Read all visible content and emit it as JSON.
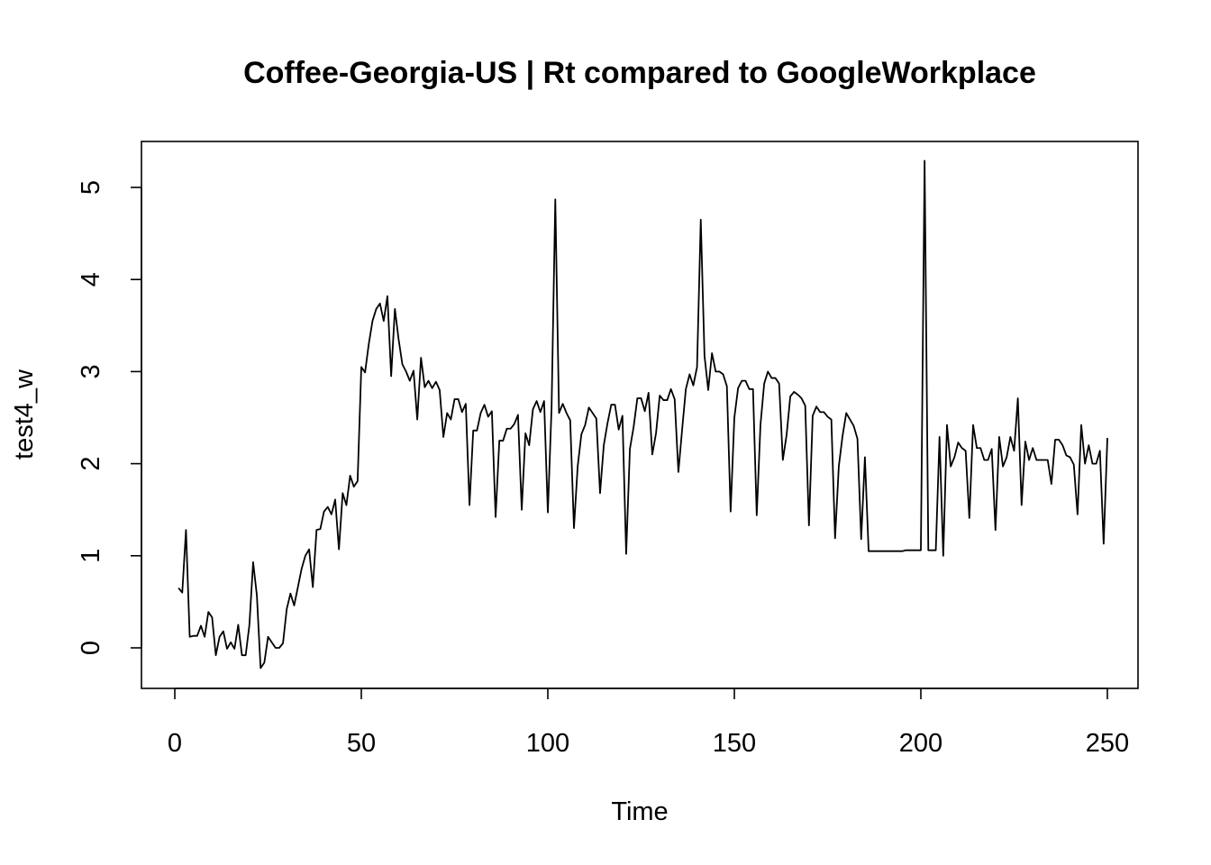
{
  "chart_data": {
    "type": "line",
    "title": "Coffee-Georgia-US | Rt compared to GoogleWorkplace",
    "xlabel": "Time",
    "ylabel": "test4_w",
    "xlim": [
      0,
      250
    ],
    "ylim": [
      -0.2,
      5.3
    ],
    "x_ticks": [
      0,
      50,
      100,
      150,
      200,
      250
    ],
    "y_ticks": [
      0,
      1,
      2,
      3,
      4,
      5
    ],
    "grid": false,
    "series": [
      {
        "x_start": 1,
        "values": [
          0.65,
          0.6,
          1.28,
          0.12,
          0.13,
          0.13,
          0.24,
          0.12,
          0.39,
          0.33,
          -0.08,
          0.12,
          0.18,
          -0.01,
          0.06,
          -0.01,
          0.25,
          -0.08,
          -0.08,
          0.25,
          0.93,
          0.57,
          -0.22,
          -0.16,
          0.12,
          0.06,
          0.0,
          0.0,
          0.05,
          0.42,
          0.59,
          0.46,
          0.66,
          0.86,
          1.0,
          1.07,
          0.66,
          1.28,
          1.29,
          1.48,
          1.53,
          1.45,
          1.61,
          1.07,
          1.68,
          1.55,
          1.87,
          1.75,
          1.81,
          3.05,
          2.99,
          3.3,
          3.55,
          3.68,
          3.74,
          3.55,
          3.82,
          2.95,
          3.68,
          3.35,
          3.08,
          3.0,
          2.9,
          3.01,
          2.48,
          3.15,
          2.83,
          2.9,
          2.82,
          2.89,
          2.8,
          2.29,
          2.55,
          2.48,
          2.7,
          2.7,
          2.56,
          2.65,
          1.55,
          2.36,
          2.36,
          2.55,
          2.64,
          2.51,
          2.57,
          1.42,
          2.25,
          2.25,
          2.38,
          2.38,
          2.43,
          2.53,
          1.5,
          2.33,
          2.2,
          2.59,
          2.68,
          2.56,
          2.68,
          1.47,
          2.6,
          4.87,
          2.55,
          2.65,
          2.55,
          2.47,
          1.3,
          1.97,
          2.32,
          2.42,
          2.61,
          2.55,
          2.49,
          1.68,
          2.2,
          2.44,
          2.64,
          2.64,
          2.37,
          2.52,
          1.02,
          2.16,
          2.4,
          2.71,
          2.71,
          2.57,
          2.77,
          2.1,
          2.33,
          2.74,
          2.69,
          2.69,
          2.81,
          2.7,
          1.91,
          2.37,
          2.81,
          2.97,
          2.85,
          3.05,
          4.65,
          3.17,
          2.8,
          3.2,
          3.0,
          3.0,
          2.97,
          2.84,
          1.48,
          2.5,
          2.82,
          2.9,
          2.9,
          2.81,
          2.81,
          1.44,
          2.42,
          2.87,
          3.0,
          2.93,
          2.93,
          2.87,
          2.04,
          2.31,
          2.73,
          2.78,
          2.75,
          2.71,
          2.63,
          1.33,
          2.52,
          2.62,
          2.56,
          2.56,
          2.51,
          2.48,
          1.19,
          1.97,
          2.3,
          2.55,
          2.48,
          2.41,
          2.27,
          1.18,
          2.07,
          1.05,
          1.05,
          1.05,
          1.05,
          1.05,
          1.05,
          1.05,
          1.05,
          1.05,
          1.05,
          1.06,
          1.06,
          1.06,
          1.06,
          1.06,
          5.29,
          1.06,
          1.06,
          1.06,
          2.29,
          1.0,
          2.42,
          1.97,
          2.07,
          2.23,
          2.17,
          2.14,
          1.41,
          2.42,
          2.17,
          2.17,
          2.04,
          2.04,
          2.16,
          1.28,
          2.29,
          1.97,
          2.07,
          2.29,
          2.14,
          2.71,
          1.55,
          2.24,
          2.04,
          2.17,
          2.04,
          2.04,
          2.04,
          2.04,
          1.78,
          2.26,
          2.26,
          2.2,
          2.09,
          2.07,
          1.99,
          1.45,
          2.42,
          2.0,
          2.2,
          2.0,
          2.0,
          2.14,
          1.13,
          2.28
        ]
      }
    ]
  }
}
